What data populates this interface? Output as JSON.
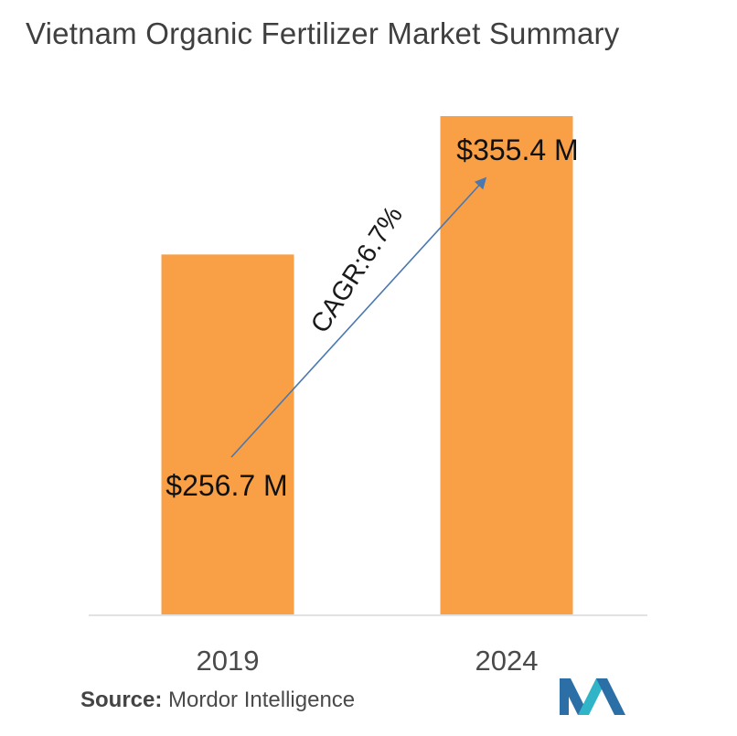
{
  "title": "Vietnam Organic Fertilizer Market Summary",
  "source": {
    "label": "Source:",
    "text": "Mordor Intelligence"
  },
  "logo": {
    "name": "mordor-intelligence-logo",
    "colors": [
      "#2b6fa6",
      "#2fb4c8"
    ]
  },
  "chart_data": {
    "type": "bar",
    "categories": [
      "2019",
      "2024"
    ],
    "values": [
      256.7,
      355.4
    ],
    "data_labels": [
      "$256.7 M",
      "$355.4 M"
    ],
    "annotation": "CAGR:6.7%",
    "xlabel": "",
    "ylabel": "",
    "grid": false,
    "bar_color": "#f9a046",
    "arrow_color": "#4a78b0"
  }
}
